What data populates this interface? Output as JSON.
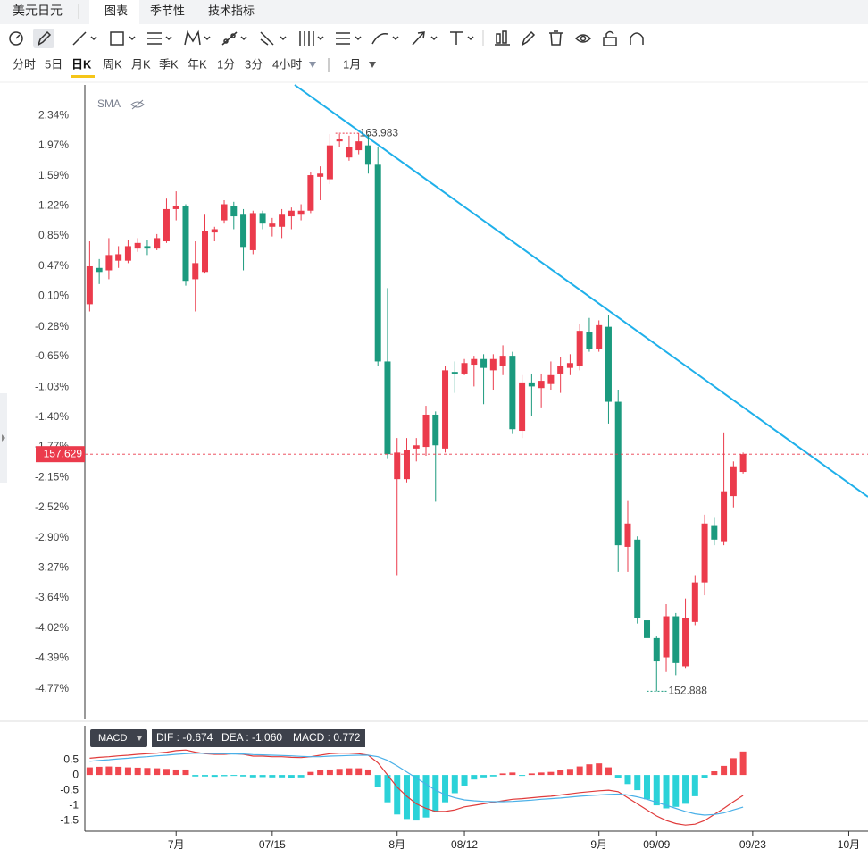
{
  "header": {
    "symbol": "美元日元",
    "tabs": [
      "图表",
      "季节性",
      "技术指标"
    ]
  },
  "periods": [
    "分时",
    "5日",
    "日K",
    "周K",
    "月K",
    "季K",
    "年K",
    "1分",
    "3分",
    "4小时"
  ],
  "range": "1月",
  "chart_data": [
    {
      "type": "candlestick",
      "indicator": "SMA",
      "up_color": "#eb3b4c",
      "down_color": "#1b9a7e",
      "open": [
        0.0,
        0.45,
        0.42,
        0.54,
        0.54,
        0.69,
        0.72,
        0.69,
        0.78,
        1.18,
        1.22,
        0.31,
        0.4,
        0.89,
        1.04,
        1.22,
        1.11,
        0.67,
        1.13,
        0.96,
        0.96,
        1.09,
        1.11,
        1.16,
        1.58,
        1.55,
        2.02,
        1.82,
        1.91,
        1.97,
        1.73,
        -0.71,
        -2.17,
        -2.17,
        -1.79,
        -1.77,
        -1.37,
        -1.79,
        -0.84,
        -0.86,
        -0.75,
        -0.68,
        -0.82,
        -0.77,
        -0.64,
        -1.57,
        -0.97,
        -1.04,
        -0.99,
        -0.86,
        -0.79,
        -0.77,
        -0.35,
        -0.55,
        -0.28,
        -1.21,
        -3.01,
        -2.92,
        -3.92,
        -4.14,
        -4.38,
        -3.87,
        -4.49,
        -3.94,
        -3.45,
        -2.74,
        -2.94,
        -2.38,
        -2.08
      ],
      "close": [
        0.47,
        0.4,
        0.61,
        0.62,
        0.72,
        0.76,
        0.69,
        0.82,
        1.18,
        1.22,
        0.29,
        0.51,
        0.91,
        0.93,
        1.24,
        1.09,
        0.71,
        1.13,
        1.0,
        1.0,
        1.11,
        1.16,
        1.16,
        1.6,
        1.62,
        1.97,
        2.05,
        1.95,
        2.02,
        1.73,
        -0.71,
        -1.86,
        -1.84,
        -1.81,
        -1.75,
        -1.37,
        -1.75,
        -0.82,
        -0.86,
        -0.73,
        -0.68,
        -0.79,
        -0.68,
        -0.64,
        -1.55,
        -0.97,
        -1.02,
        -0.95,
        -0.88,
        -0.77,
        -0.73,
        -0.33,
        -0.55,
        -0.26,
        -1.21,
        -2.99,
        -2.72,
        -3.89,
        -4.14,
        -4.43,
        -3.87,
        -4.45,
        -3.89,
        -3.45,
        -2.72,
        -2.92,
        -2.32,
        -2.01,
        -1.86
      ],
      "high": [
        0.78,
        0.56,
        0.82,
        0.72,
        0.8,
        0.82,
        0.8,
        0.87,
        1.31,
        1.4,
        1.24,
        0.78,
        1.11,
        0.96,
        1.29,
        1.27,
        1.18,
        1.16,
        1.16,
        1.07,
        1.18,
        1.2,
        1.24,
        1.64,
        1.71,
        2.11,
        2.11,
        2.09,
        2.12,
        2.11,
        1.95,
        0.2,
        -1.66,
        -1.66,
        -1.66,
        -1.26,
        -1.33,
        -0.77,
        -0.71,
        -0.68,
        -0.64,
        -0.62,
        -0.62,
        -0.51,
        -0.59,
        -0.88,
        -0.86,
        -0.86,
        -0.71,
        -0.66,
        -0.62,
        -0.24,
        -0.17,
        -0.2,
        -0.13,
        -1.06,
        -2.43,
        -2.88,
        -3.85,
        -4.12,
        -3.72,
        -3.83,
        -3.65,
        -3.36,
        -2.61,
        -2.65,
        -1.59,
        -1.95,
        -1.84
      ],
      "low": [
        -0.09,
        0.25,
        0.31,
        0.45,
        0.51,
        0.65,
        0.61,
        0.67,
        0.76,
        1.04,
        0.23,
        -0.09,
        0.38,
        0.78,
        1.0,
        0.93,
        0.42,
        0.62,
        0.93,
        0.84,
        0.82,
        0.93,
        1.04,
        1.13,
        1.29,
        1.49,
        1.95,
        1.78,
        1.86,
        1.62,
        -0.77,
        -1.92,
        -3.36,
        -2.21,
        -1.95,
        -1.88,
        -2.45,
        -1.84,
        -1.1,
        -0.88,
        -1.02,
        -1.24,
        -1.06,
        -0.88,
        -1.61,
        -1.66,
        -1.39,
        -1.28,
        -1.06,
        -1.1,
        -0.88,
        -0.82,
        -0.59,
        -0.59,
        -1.48,
        -3.32,
        -3.32,
        -3.96,
        -4.8,
        -4.8,
        -4.56,
        -4.6,
        -4.51,
        -3.98,
        -3.61,
        -2.99,
        -2.99,
        -2.52,
        -2.1
      ],
      "max_label": "163.983",
      "min_label": "152.888",
      "last_label": "157.629",
      "xlim": [
        -0.5,
        81
      ],
      "ylim": [
        -5.15,
        2.72
      ],
      "yticks": [
        {
          "value": 2.34,
          "label": "2.34%"
        },
        {
          "value": 1.97,
          "label": "1.97%"
        },
        {
          "value": 1.59,
          "label": "1.59%"
        },
        {
          "value": 1.22,
          "label": "1.22%"
        },
        {
          "value": 0.85,
          "label": "0.85%"
        },
        {
          "value": 0.47,
          "label": "0.47%"
        },
        {
          "value": 0.1,
          "label": "0.10%"
        },
        {
          "value": -0.28,
          "label": "-0.28%"
        },
        {
          "value": -0.65,
          "label": "-0.65%"
        },
        {
          "value": -1.03,
          "label": "-1.03%"
        },
        {
          "value": -1.4,
          "label": "-1.40%"
        },
        {
          "value": -1.77,
          "label": "-1.77%"
        },
        {
          "value": -2.15,
          "label": "-2.15%"
        },
        {
          "value": -2.52,
          "label": "-2.52%"
        },
        {
          "value": -2.9,
          "label": "-2.90%"
        },
        {
          "value": -3.27,
          "label": "-3.27%"
        },
        {
          "value": -3.64,
          "label": "-3.64%"
        },
        {
          "value": -4.02,
          "label": "-4.02%"
        },
        {
          "value": -4.39,
          "label": "-4.39%"
        },
        {
          "value": -4.77,
          "label": "-4.77%"
        }
      ]
    },
    {
      "type": "macd",
      "name": "MACD",
      "info": [
        "DIF : -0.674",
        "DEA : -1.060",
        "MACD : 0.772"
      ],
      "pos_color": "#f0474f",
      "neg_color": "#2bd2d8",
      "histogram": [
        0.25,
        0.27,
        0.28,
        0.27,
        0.25,
        0.24,
        0.23,
        0.22,
        0.2,
        0.18,
        0.18,
        -0.05,
        -0.05,
        -0.06,
        -0.04,
        -0.03,
        -0.05,
        -0.08,
        -0.07,
        -0.08,
        -0.08,
        -0.09,
        -0.08,
        0.1,
        0.15,
        0.18,
        0.2,
        0.22,
        0.22,
        0.18,
        -0.4,
        -0.9,
        -1.3,
        -1.45,
        -1.5,
        -1.4,
        -1.2,
        -0.9,
        -0.6,
        -0.35,
        -0.15,
        -0.08,
        -0.05,
        0.05,
        0.08,
        -0.03,
        0.05,
        0.08,
        0.1,
        0.15,
        0.2,
        0.28,
        0.35,
        0.38,
        0.25,
        -0.1,
        -0.3,
        -0.5,
        -0.8,
        -1.0,
        -1.1,
        -1.05,
        -0.95,
        -0.7,
        -0.1,
        0.12,
        0.3,
        0.55,
        0.772
      ],
      "series": [
        {
          "name": "DIF",
          "color": "#e03b3b",
          "values": [
            0.55,
            0.58,
            0.6,
            0.63,
            0.65,
            0.68,
            0.7,
            0.72,
            0.75,
            0.8,
            0.82,
            0.75,
            0.7,
            0.68,
            0.68,
            0.7,
            0.68,
            0.62,
            0.62,
            0.6,
            0.6,
            0.58,
            0.57,
            0.6,
            0.65,
            0.7,
            0.72,
            0.72,
            0.7,
            0.65,
            0.4,
            0.0,
            -0.4,
            -0.7,
            -0.95,
            -1.1,
            -1.2,
            -1.2,
            -1.15,
            -1.05,
            -1.0,
            -0.95,
            -0.9,
            -0.85,
            -0.8,
            -0.78,
            -0.75,
            -0.72,
            -0.7,
            -0.66,
            -0.62,
            -0.58,
            -0.55,
            -0.52,
            -0.5,
            -0.55,
            -0.75,
            -0.95,
            -1.15,
            -1.35,
            -1.5,
            -1.6,
            -1.65,
            -1.62,
            -1.5,
            -1.3,
            -1.1,
            -0.88,
            -0.674
          ]
        },
        {
          "name": "DEA",
          "color": "#4ab0e8",
          "values": [
            0.45,
            0.48,
            0.5,
            0.53,
            0.55,
            0.58,
            0.6,
            0.63,
            0.65,
            0.68,
            0.7,
            0.72,
            0.71,
            0.7,
            0.7,
            0.69,
            0.69,
            0.67,
            0.66,
            0.65,
            0.64,
            0.63,
            0.61,
            0.6,
            0.6,
            0.62,
            0.63,
            0.64,
            0.65,
            0.65,
            0.6,
            0.48,
            0.3,
            0.1,
            -0.1,
            -0.3,
            -0.5,
            -0.65,
            -0.75,
            -0.82,
            -0.85,
            -0.87,
            -0.88,
            -0.88,
            -0.87,
            -0.85,
            -0.83,
            -0.8,
            -0.78,
            -0.76,
            -0.73,
            -0.7,
            -0.68,
            -0.66,
            -0.64,
            -0.63,
            -0.66,
            -0.72,
            -0.8,
            -0.9,
            -1.0,
            -1.1,
            -1.2,
            -1.28,
            -1.32,
            -1.3,
            -1.25,
            -1.15,
            -1.06
          ]
        }
      ],
      "xlim": [
        -0.5,
        81
      ],
      "ylim": [
        -1.85,
        1.62
      ],
      "yticks": [
        0.5,
        0,
        -0.5,
        -1,
        -1.5
      ],
      "xticks": [
        {
          "value": 9,
          "label": "7月"
        },
        {
          "value": 19,
          "label": "07/15"
        },
        {
          "value": 32,
          "label": "8月"
        },
        {
          "value": 39,
          "label": "08/12"
        },
        {
          "value": 53,
          "label": "9月"
        },
        {
          "value": 59,
          "label": "09/09"
        },
        {
          "value": 69,
          "label": "09/23"
        },
        {
          "value": 79,
          "label": "10月"
        }
      ]
    }
  ]
}
